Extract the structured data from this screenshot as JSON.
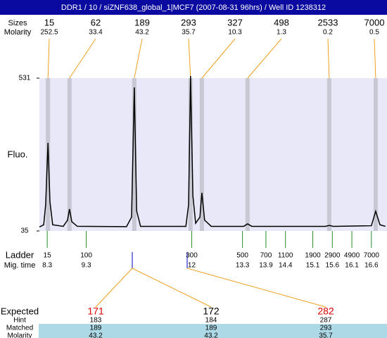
{
  "chart_data": {
    "type": "line",
    "title": "DDR1 / 10 / siZNF638_global_1|MCF7 (2007-08-31 96hrs) / Well ID 1238312",
    "ylabel": "Fluo.",
    "color": "#000000",
    "x": [
      8.1,
      8.21,
      8.26,
      8.32,
      8.37,
      8.44,
      8.71,
      8.82,
      8.87,
      8.93,
      9.07,
      10.33,
      10.46,
      10.53,
      10.59,
      10.69,
      11.85,
      11.92,
      11.97,
      12.03,
      12.1,
      12.21,
      12.26,
      12.33,
      12.5,
      13.33,
      13.43,
      13.54,
      15.42,
      15.52,
      15.63,
      16.6,
      16.71,
      16.82,
      16.96
    ],
    "values": [
      48,
      55,
      120,
      321,
      130,
      55,
      50,
      70,
      106,
      65,
      50,
      49,
      80,
      501,
      100,
      50,
      50,
      120,
      538,
      150,
      60,
      80,
      159,
      70,
      50,
      50,
      58,
      50,
      50,
      53,
      50,
      52,
      99,
      55,
      50
    ],
    "xlim": [
      8.1,
      17.0
    ],
    "ylim": [
      35,
      531
    ],
    "yticks": [
      35,
      531
    ],
    "peaks": {
      "labels": [
        "Sizes",
        "Molarity"
      ],
      "sizes": [
        15,
        62,
        189,
        293,
        327,
        498,
        2533,
        7000
      ],
      "molarity": [
        252.5,
        33.4,
        43.2,
        35.7,
        10.3,
        1.3,
        0.2,
        0.5
      ],
      "times": [
        8.32,
        8.87,
        10.53,
        11.97,
        12.26,
        13.43,
        15.52,
        16.71
      ]
    },
    "ladder": {
      "labels": [
        "Ladder",
        "Mig. time"
      ],
      "sizes": [
        15,
        100,
        300,
        500,
        700,
        1100,
        1900,
        2900,
        4900,
        7000
      ],
      "times": [
        8.3,
        9.3,
        12,
        13.3,
        13.9,
        14.4,
        15.1,
        15.6,
        16.1,
        16.6
      ]
    }
  },
  "expected_table": {
    "row_labels": [
      "Expected",
      "Hint",
      "Matched",
      "Molarity"
    ],
    "rows": [
      [
        171,
        172,
        282
      ],
      [
        183,
        184,
        287
      ],
      [
        189,
        189,
        293
      ],
      [
        43.2,
        43.2,
        35.7
      ]
    ],
    "expected_colors": [
      "#e00000",
      "#000000",
      "#e00000"
    ]
  }
}
